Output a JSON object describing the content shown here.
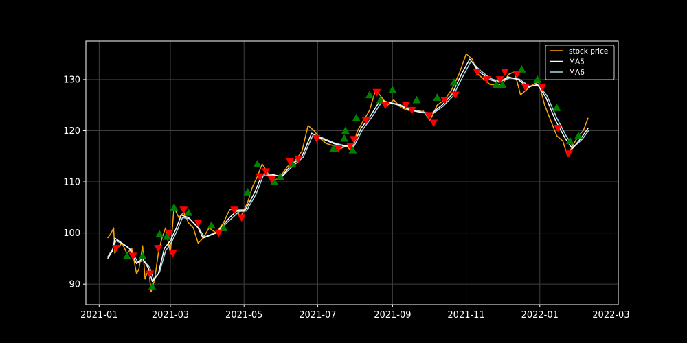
{
  "chart_data": {
    "type": "line",
    "title": "",
    "xlabel": "",
    "ylabel": "",
    "xlim": [
      "2020-12-21",
      "2022-03-07"
    ],
    "ylim": [
      86,
      137.5
    ],
    "grid": true,
    "legend_position": "top-right",
    "colors": {
      "background": "#000000",
      "price": "#FFA500",
      "ma5": "#FFFFFF",
      "ma6": "#ADD8E6",
      "buy_marker": "#008000",
      "sell_marker": "#FF0000",
      "grid": "#404040",
      "axis": "#FFFFFF"
    },
    "x_ticks": [
      {
        "date": "2021-01-01",
        "label": "2021-01"
      },
      {
        "date": "2021-03-01",
        "label": "2021-03"
      },
      {
        "date": "2021-05-01",
        "label": "2021-05"
      },
      {
        "date": "2021-07-01",
        "label": "2021-07"
      },
      {
        "date": "2021-09-01",
        "label": "2021-09"
      },
      {
        "date": "2021-11-01",
        "label": "2021-11"
      },
      {
        "date": "2022-01-01",
        "label": "2022-01"
      },
      {
        "date": "2022-03-01",
        "label": "2022-03"
      }
    ],
    "y_ticks": [
      90,
      100,
      110,
      120,
      130
    ],
    "legend": [
      "stock price",
      "MA5",
      "MA6"
    ],
    "series": [
      {
        "name": "stock price",
        "points": [
          [
            "2021-01-08",
            99
          ],
          [
            "2021-01-11",
            100
          ],
          [
            "2021-01-13",
            101
          ],
          [
            "2021-01-14",
            96
          ],
          [
            "2021-01-16",
            97
          ],
          [
            "2021-01-20",
            98
          ],
          [
            "2021-01-24",
            96
          ],
          [
            "2021-01-28",
            97
          ],
          [
            "2021-02-01",
            92
          ],
          [
            "2021-02-03",
            93
          ],
          [
            "2021-02-06",
            97.5
          ],
          [
            "2021-02-08",
            91
          ],
          [
            "2021-02-11",
            93
          ],
          [
            "2021-02-13",
            88.5
          ],
          [
            "2021-02-16",
            91
          ],
          [
            "2021-02-19",
            96
          ],
          [
            "2021-02-22",
            99
          ],
          [
            "2021-02-25",
            101
          ],
          [
            "2021-03-01",
            96
          ],
          [
            "2021-03-04",
            105
          ],
          [
            "2021-03-08",
            103
          ],
          [
            "2021-03-12",
            104
          ],
          [
            "2021-03-16",
            102
          ],
          [
            "2021-03-20",
            101
          ],
          [
            "2021-03-24",
            98
          ],
          [
            "2021-03-28",
            99
          ],
          [
            "2021-04-02",
            101
          ],
          [
            "2021-04-08",
            100
          ],
          [
            "2021-04-14",
            102
          ],
          [
            "2021-04-19",
            104.5
          ],
          [
            "2021-04-24",
            105
          ],
          [
            "2021-04-28",
            103
          ],
          [
            "2021-05-04",
            106
          ],
          [
            "2021-05-08",
            109
          ],
          [
            "2021-05-12",
            111
          ],
          [
            "2021-05-16",
            113.5
          ],
          [
            "2021-05-20",
            112
          ],
          [
            "2021-05-25",
            110
          ],
          [
            "2021-05-31",
            111
          ],
          [
            "2021-06-06",
            113
          ],
          [
            "2021-06-12",
            114
          ],
          [
            "2021-06-18",
            116
          ],
          [
            "2021-06-23",
            121
          ],
          [
            "2021-06-28",
            120
          ],
          [
            "2021-07-03",
            118.5
          ],
          [
            "2021-07-08",
            117.5
          ],
          [
            "2021-07-15",
            117
          ],
          [
            "2021-07-20",
            116.5
          ],
          [
            "2021-07-25",
            117
          ],
          [
            "2021-07-29",
            116
          ],
          [
            "2021-08-03",
            120
          ],
          [
            "2021-08-08",
            122
          ],
          [
            "2021-08-13",
            124
          ],
          [
            "2021-08-18",
            128
          ],
          [
            "2021-08-23",
            126.5
          ],
          [
            "2021-08-28",
            125
          ],
          [
            "2021-09-02",
            126
          ],
          [
            "2021-09-08",
            124.5
          ],
          [
            "2021-09-14",
            124
          ],
          [
            "2021-09-20",
            124
          ],
          [
            "2021-09-26",
            124
          ],
          [
            "2021-10-02",
            122
          ],
          [
            "2021-10-08",
            125
          ],
          [
            "2021-10-14",
            126
          ],
          [
            "2021-10-20",
            128
          ],
          [
            "2021-10-26",
            131
          ],
          [
            "2021-11-01",
            135
          ],
          [
            "2021-11-06",
            134
          ],
          [
            "2021-11-11",
            131
          ],
          [
            "2021-11-16",
            130
          ],
          [
            "2021-11-21",
            129
          ],
          [
            "2021-11-26",
            129
          ],
          [
            "2021-12-01",
            129
          ],
          [
            "2021-12-06",
            131
          ],
          [
            "2021-12-11",
            131.5
          ],
          [
            "2021-12-16",
            127
          ],
          [
            "2021-12-21",
            128
          ],
          [
            "2021-12-26",
            129
          ],
          [
            "2021-12-31",
            129.5
          ],
          [
            "2022-01-05",
            125
          ],
          [
            "2022-01-10",
            122
          ],
          [
            "2022-01-15",
            119
          ],
          [
            "2022-01-20",
            118
          ],
          [
            "2022-01-24",
            115
          ],
          [
            "2022-01-28",
            117
          ],
          [
            "2022-02-02",
            119
          ],
          [
            "2022-02-06",
            120
          ],
          [
            "2022-02-10",
            122.5
          ]
        ]
      },
      {
        "name": "MA5",
        "points": [
          [
            "2021-01-08",
            95
          ],
          [
            "2021-01-12",
            96.5
          ],
          [
            "2021-01-14",
            99
          ],
          [
            "2021-01-20",
            98
          ],
          [
            "2021-01-26",
            97
          ],
          [
            "2021-02-01",
            94
          ],
          [
            "2021-02-06",
            95
          ],
          [
            "2021-02-11",
            93
          ],
          [
            "2021-02-14",
            90.5
          ],
          [
            "2021-02-19",
            92
          ],
          [
            "2021-02-24",
            97
          ],
          [
            "2021-03-01",
            98.5
          ],
          [
            "2021-03-06",
            101
          ],
          [
            "2021-03-10",
            103.5
          ],
          [
            "2021-03-16",
            103
          ],
          [
            "2021-03-24",
            101
          ],
          [
            "2021-03-28",
            99
          ],
          [
            "2021-04-08",
            100
          ],
          [
            "2021-04-19",
            103
          ],
          [
            "2021-04-26",
            104.5
          ],
          [
            "2021-05-02",
            104.5
          ],
          [
            "2021-05-10",
            108
          ],
          [
            "2021-05-16",
            111.5
          ],
          [
            "2021-05-24",
            111.5
          ],
          [
            "2021-06-01",
            111
          ],
          [
            "2021-06-08",
            113
          ],
          [
            "2021-06-18",
            115
          ],
          [
            "2021-06-26",
            119.5
          ],
          [
            "2021-07-04",
            118.5
          ],
          [
            "2021-07-14",
            117.5
          ],
          [
            "2021-07-22",
            117
          ],
          [
            "2021-07-30",
            117
          ],
          [
            "2021-08-06",
            120.5
          ],
          [
            "2021-08-14",
            123
          ],
          [
            "2021-08-22",
            126
          ],
          [
            "2021-08-29",
            125.5
          ],
          [
            "2021-09-06",
            125
          ],
          [
            "2021-09-16",
            124
          ],
          [
            "2021-09-26",
            123.5
          ],
          [
            "2021-10-04",
            123.5
          ],
          [
            "2021-10-12",
            125
          ],
          [
            "2021-10-20",
            127
          ],
          [
            "2021-10-28",
            131
          ],
          [
            "2021-11-04",
            134
          ],
          [
            "2021-11-12",
            131.5
          ],
          [
            "2021-11-20",
            130
          ],
          [
            "2021-11-28",
            129.5
          ],
          [
            "2021-12-06",
            130.5
          ],
          [
            "2021-12-14",
            130
          ],
          [
            "2021-12-22",
            128.5
          ],
          [
            "2021-12-30",
            129
          ],
          [
            "2022-01-06",
            126.5
          ],
          [
            "2022-01-14",
            122
          ],
          [
            "2022-01-22",
            118.5
          ],
          [
            "2022-01-28",
            116.5
          ],
          [
            "2022-02-04",
            118.5
          ],
          [
            "2022-02-10",
            120.5
          ]
        ]
      },
      {
        "name": "MA6",
        "points": [
          [
            "2021-01-08",
            95.3
          ],
          [
            "2021-01-12",
            96.8
          ],
          [
            "2021-01-15",
            98.5
          ],
          [
            "2021-01-21",
            97.8
          ],
          [
            "2021-01-27",
            96.8
          ],
          [
            "2021-02-02",
            94.3
          ],
          [
            "2021-02-07",
            94.6
          ],
          [
            "2021-02-12",
            93.2
          ],
          [
            "2021-02-15",
            91
          ],
          [
            "2021-02-20",
            92.3
          ],
          [
            "2021-02-25",
            96.5
          ],
          [
            "2021-03-02",
            98.2
          ],
          [
            "2021-03-07",
            100.7
          ],
          [
            "2021-03-11",
            103
          ],
          [
            "2021-03-17",
            102.8
          ],
          [
            "2021-03-25",
            100.8
          ],
          [
            "2021-03-29",
            99.2
          ],
          [
            "2021-04-09",
            100.2
          ],
          [
            "2021-04-20",
            102.7
          ],
          [
            "2021-04-27",
            104.2
          ],
          [
            "2021-05-03",
            104.3
          ],
          [
            "2021-05-11",
            107.6
          ],
          [
            "2021-05-17",
            111.2
          ],
          [
            "2021-05-25",
            111.3
          ],
          [
            "2021-06-02",
            111.1
          ],
          [
            "2021-06-09",
            112.8
          ],
          [
            "2021-06-19",
            114.8
          ],
          [
            "2021-06-27",
            119.1
          ],
          [
            "2021-07-05",
            118.6
          ],
          [
            "2021-07-15",
            117.6
          ],
          [
            "2021-07-23",
            117.1
          ],
          [
            "2021-07-31",
            116.9
          ],
          [
            "2021-08-07",
            120.1
          ],
          [
            "2021-08-15",
            122.7
          ],
          [
            "2021-08-23",
            125.6
          ],
          [
            "2021-08-30",
            125.5
          ],
          [
            "2021-09-07",
            125.1
          ],
          [
            "2021-09-17",
            124.1
          ],
          [
            "2021-09-27",
            123.6
          ],
          [
            "2021-10-05",
            123.4
          ],
          [
            "2021-10-13",
            124.8
          ],
          [
            "2021-10-21",
            126.7
          ],
          [
            "2021-10-29",
            130.5
          ],
          [
            "2021-11-05",
            133.6
          ],
          [
            "2021-11-13",
            131.7
          ],
          [
            "2021-11-21",
            130.2
          ],
          [
            "2021-11-29",
            129.6
          ],
          [
            "2021-12-07",
            130.3
          ],
          [
            "2021-12-15",
            130.1
          ],
          [
            "2021-12-23",
            128.7
          ],
          [
            "2021-12-31",
            128.9
          ],
          [
            "2022-01-07",
            126.8
          ],
          [
            "2022-01-15",
            122.5
          ],
          [
            "2022-01-23",
            118.9
          ],
          [
            "2022-01-29",
            116.8
          ],
          [
            "2022-02-05",
            118.3
          ],
          [
            "2022-02-11",
            120.2
          ]
        ]
      }
    ],
    "buy_signals": [
      [
        "2021-01-24",
        95.5
      ],
      [
        "2021-02-06",
        95.5
      ],
      [
        "2021-02-14",
        89.5
      ],
      [
        "2021-02-20",
        99.8
      ],
      [
        "2021-02-26",
        99.3
      ],
      [
        "2021-03-04",
        105
      ],
      [
        "2021-03-16",
        104
      ],
      [
        "2021-04-04",
        101.5
      ],
      [
        "2021-04-14",
        101
      ],
      [
        "2021-05-04",
        108
      ],
      [
        "2021-05-12",
        113.5
      ],
      [
        "2021-05-26",
        110
      ],
      [
        "2021-05-31",
        111
      ],
      [
        "2021-06-10",
        113.5
      ],
      [
        "2021-07-14",
        116.5
      ],
      [
        "2021-07-24",
        120
      ],
      [
        "2021-07-23",
        118.5
      ],
      [
        "2021-07-30",
        116.2
      ],
      [
        "2021-08-02",
        122.5
      ],
      [
        "2021-08-13",
        127
      ],
      [
        "2021-08-22",
        126
      ],
      [
        "2021-09-01",
        128
      ],
      [
        "2021-09-21",
        126
      ],
      [
        "2021-10-08",
        126.5
      ],
      [
        "2021-10-22",
        129.5
      ],
      [
        "2021-11-26",
        129
      ],
      [
        "2021-12-01",
        129
      ],
      [
        "2021-12-17",
        132
      ],
      [
        "2021-12-30",
        130
      ],
      [
        "2022-01-15",
        124.5
      ],
      [
        "2022-01-26",
        118
      ],
      [
        "2022-02-02",
        119
      ]
    ],
    "sell_signals": [
      [
        "2021-01-15",
        97
      ],
      [
        "2021-01-29",
        95.5
      ],
      [
        "2021-02-12",
        92
      ],
      [
        "2021-02-19",
        97
      ],
      [
        "2021-02-28",
        100
      ],
      [
        "2021-03-03",
        96
      ],
      [
        "2021-03-12",
        104.5
      ],
      [
        "2021-03-24",
        102
      ],
      [
        "2021-04-10",
        100
      ],
      [
        "2021-04-23",
        104.5
      ],
      [
        "2021-04-29",
        103
      ],
      [
        "2021-05-14",
        111
      ],
      [
        "2021-05-19",
        112
      ],
      [
        "2021-05-24",
        110.5
      ],
      [
        "2021-06-08",
        114
      ],
      [
        "2021-06-15",
        114.5
      ],
      [
        "2021-06-30",
        118.5
      ],
      [
        "2021-07-18",
        116.5
      ],
      [
        "2021-07-28",
        117
      ],
      [
        "2021-07-31",
        118.3
      ],
      [
        "2021-08-10",
        122
      ],
      [
        "2021-08-19",
        127.5
      ],
      [
        "2021-08-26",
        125
      ],
      [
        "2021-09-12",
        125
      ],
      [
        "2021-09-17",
        124
      ],
      [
        "2021-10-01",
        123
      ],
      [
        "2021-10-05",
        121.5
      ],
      [
        "2021-10-14",
        126
      ],
      [
        "2021-10-23",
        127
      ],
      [
        "2021-11-10",
        131.5
      ],
      [
        "2021-11-18",
        130
      ],
      [
        "2021-11-29",
        130
      ],
      [
        "2021-12-03",
        131.5
      ],
      [
        "2021-12-13",
        131
      ],
      [
        "2021-12-20",
        128.5
      ],
      [
        "2022-01-03",
        128.5
      ],
      [
        "2022-01-16",
        120.5
      ],
      [
        "2022-01-25",
        115.5
      ]
    ]
  }
}
